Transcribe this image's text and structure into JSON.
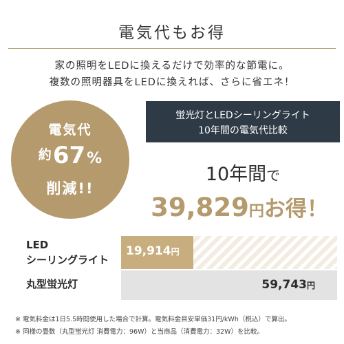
{
  "title": "電気代もお得",
  "intro": {
    "line1": "家の照明をLEDに換えるだけで効率的な節電に。",
    "line2": "複数の照明器具をLEDに換えれば、さらに省エネ！"
  },
  "badge": {
    "line1": "電気代",
    "prefix": "約",
    "percent": "67",
    "percent_sign": "%",
    "line3": "削減!!",
    "color": "#b49a6c"
  },
  "comparison_box": {
    "line1": "蛍光灯とLEDシーリングライト",
    "line2": "10年間の電気代比較",
    "color": "#2e3a45"
  },
  "savings": {
    "num": "10",
    "years": "年間",
    "de": "で",
    "amount": "39,829",
    "yen": "円",
    "suffix": "お得！",
    "color": "#b49a6c"
  },
  "bars": {
    "max_value": 59743,
    "led": {
      "label_line1": "LED",
      "label_line2": "シーリングライト",
      "value_num": "19,914",
      "yen": "円",
      "value": 19914,
      "color": "#c8ad7f"
    },
    "fluorescent": {
      "label": "丸型蛍光灯",
      "value_num": "59,743",
      "yen": "円",
      "value": 59743,
      "color": "#e3e3e3"
    }
  },
  "notes": {
    "note1": "※ 電気料金は1日5.5時間使用した場合で計算。電気料金目安単価31円/kWh（税込）で算出。",
    "note2": "※ 同様の畳数（丸型蛍光灯 消費電力：96W）と当商品（消費電力：32W）を比較。"
  }
}
